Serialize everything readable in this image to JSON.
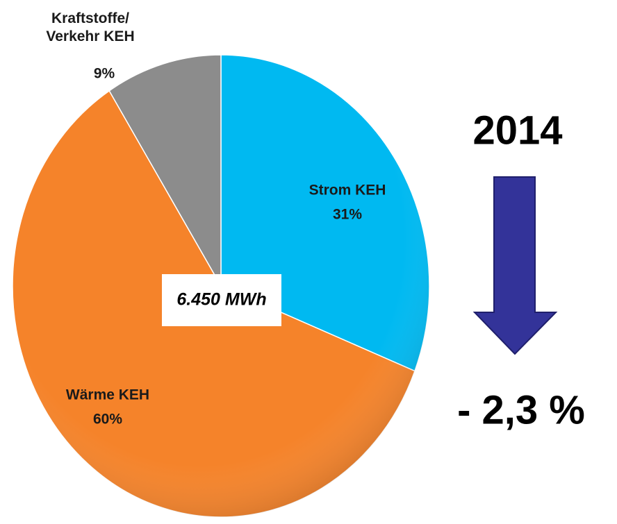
{
  "chart_data": {
    "type": "pie",
    "categories": [
      "Strom KEH",
      "Wärme KEH",
      "Kraftstoffe/\nVerkehr KEH"
    ],
    "values": [
      31,
      60,
      9
    ],
    "value_labels": [
      "31%",
      "60%",
      "9%"
    ],
    "colors": [
      "#00b9f1",
      "#f5832a",
      "#8c8c8c"
    ],
    "annotations": {
      "total": "6.450 MWh",
      "year": "2014",
      "change": "- 2,3 %"
    }
  }
}
